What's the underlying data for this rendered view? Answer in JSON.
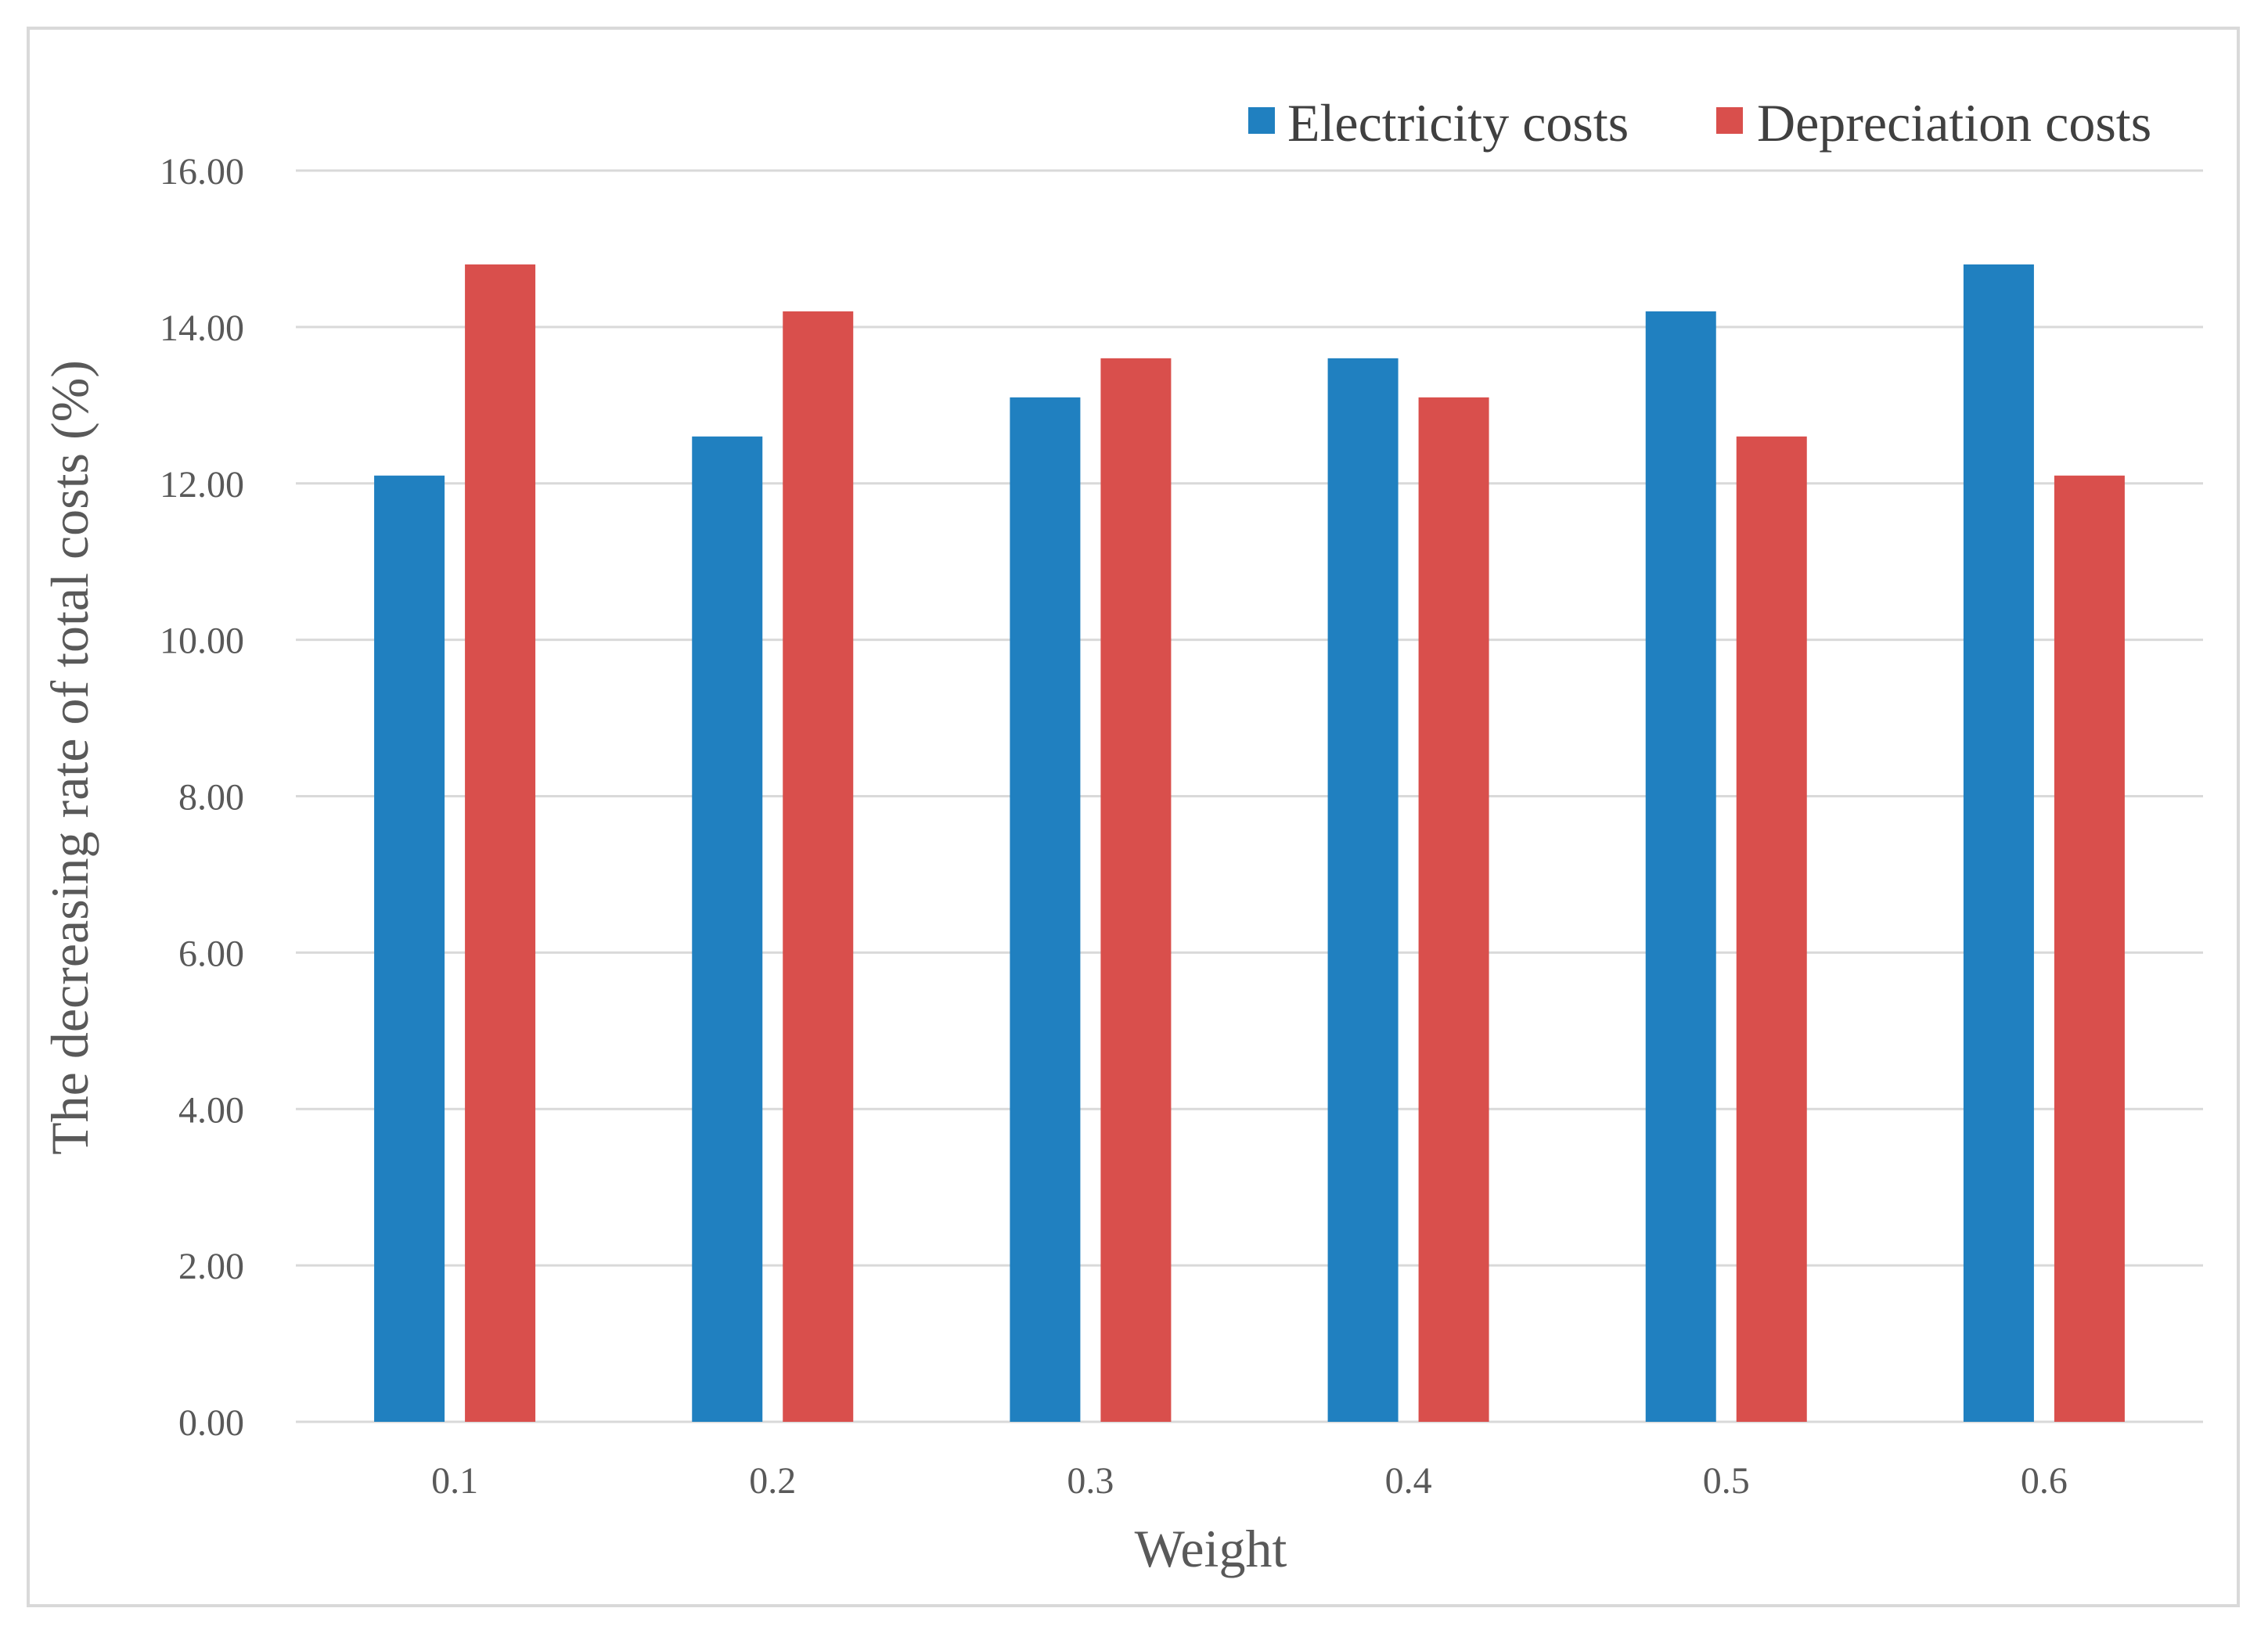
{
  "chart_data": {
    "type": "bar",
    "title": "",
    "xlabel": "Weight",
    "ylabel": "The decreasing rate of total costs (%)",
    "categories": [
      "0.1",
      "0.2",
      "0.3",
      "0.4",
      "0.5",
      "0.6"
    ],
    "series": [
      {
        "name": "Electricity costs",
        "color": "#2080c0",
        "values": [
          12.1,
          12.6,
          13.1,
          13.6,
          14.2,
          14.8
        ]
      },
      {
        "name": "Depreciation costs",
        "color": "#d94f4c",
        "values": [
          14.8,
          14.2,
          13.6,
          13.1,
          12.6,
          12.1
        ]
      }
    ],
    "ylim": [
      0,
      16
    ],
    "yticks": [
      "0.00",
      "2.00",
      "4.00",
      "6.00",
      "8.00",
      "10.00",
      "12.00",
      "14.00",
      "16.00"
    ],
    "grid": true,
    "legend_position": "top-right"
  }
}
